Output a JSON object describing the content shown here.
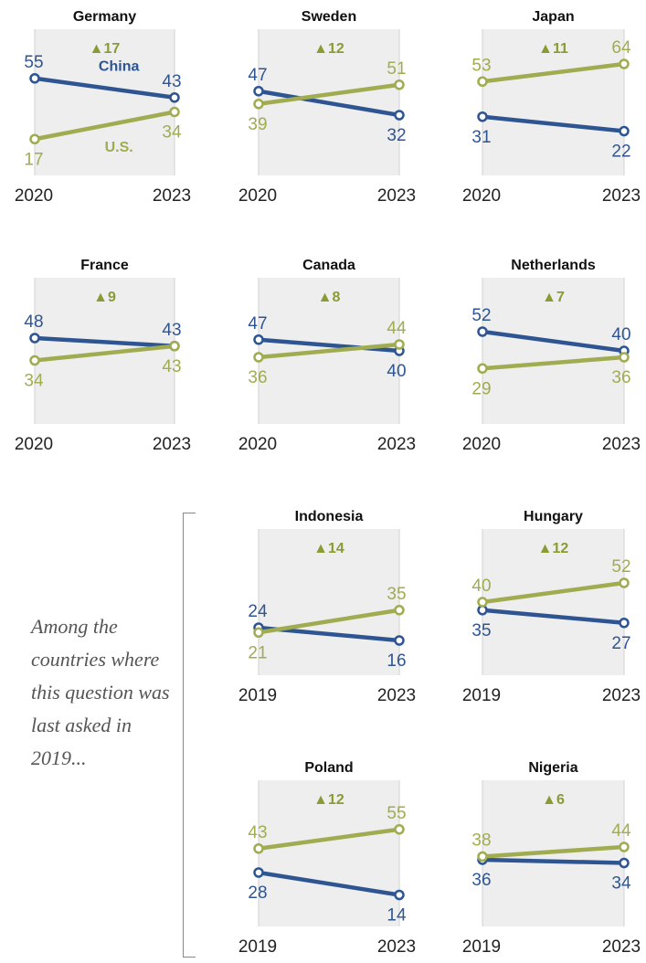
{
  "colors": {
    "china": "#2e5592",
    "us": "#a0ac4f",
    "change": "#8b9a35",
    "panel_bg": "#eeeeee",
    "panel_border": "#d2d2d2",
    "year_text": "#222222"
  },
  "side_note": "Among the countries where this question was last asked in 2019...",
  "chart_data": [
    {
      "type": "line",
      "title": "Germany",
      "change": "▲17",
      "x": [
        "2020",
        "2023"
      ],
      "series": [
        {
          "name": "China",
          "values": [
            55,
            43
          ]
        },
        {
          "name": "U.S.",
          "values": [
            17,
            34
          ]
        }
      ]
    },
    {
      "type": "line",
      "title": "Sweden",
      "change": "▲12",
      "x": [
        "2020",
        "2023"
      ],
      "series": [
        {
          "values": [
            47,
            32
          ]
        },
        {
          "values": [
            39,
            51
          ]
        }
      ]
    },
    {
      "type": "line",
      "title": "Japan",
      "change": "▲11",
      "x": [
        "2020",
        "2023"
      ],
      "series": [
        {
          "values": [
            31,
            22
          ]
        },
        {
          "values": [
            53,
            64
          ]
        }
      ]
    },
    {
      "type": "line",
      "title": "France",
      "change": "▲9",
      "x": [
        "2020",
        "2023"
      ],
      "series": [
        {
          "values": [
            48,
            43
          ]
        },
        {
          "values": [
            34,
            43
          ]
        }
      ]
    },
    {
      "type": "line",
      "title": "Canada",
      "change": "▲8",
      "x": [
        "2020",
        "2023"
      ],
      "series": [
        {
          "values": [
            47,
            40
          ]
        },
        {
          "values": [
            36,
            44
          ]
        }
      ]
    },
    {
      "type": "line",
      "title": "Netherlands",
      "change": "▲7",
      "x": [
        "2020",
        "2023"
      ],
      "series": [
        {
          "values": [
            52,
            40
          ]
        },
        {
          "values": [
            29,
            36
          ]
        }
      ]
    },
    {
      "type": "line",
      "title": "Indonesia",
      "change": "▲14",
      "x": [
        "2019",
        "2023"
      ],
      "series": [
        {
          "values": [
            24,
            16
          ]
        },
        {
          "values": [
            21,
            35
          ]
        }
      ]
    },
    {
      "type": "line",
      "title": "Hungary",
      "change": "▲12",
      "x": [
        "2019",
        "2023"
      ],
      "series": [
        {
          "values": [
            35,
            27
          ]
        },
        {
          "values": [
            40,
            52
          ]
        }
      ]
    },
    {
      "type": "line",
      "title": "Poland",
      "change": "▲12",
      "x": [
        "2019",
        "2023"
      ],
      "series": [
        {
          "values": [
            28,
            14
          ]
        },
        {
          "values": [
            43,
            55
          ]
        }
      ]
    },
    {
      "type": "line",
      "title": "Nigeria",
      "change": "▲6",
      "x": [
        "2019",
        "2023"
      ],
      "series": [
        {
          "values": [
            36,
            34
          ]
        },
        {
          "values": [
            38,
            44
          ]
        }
      ]
    }
  ]
}
